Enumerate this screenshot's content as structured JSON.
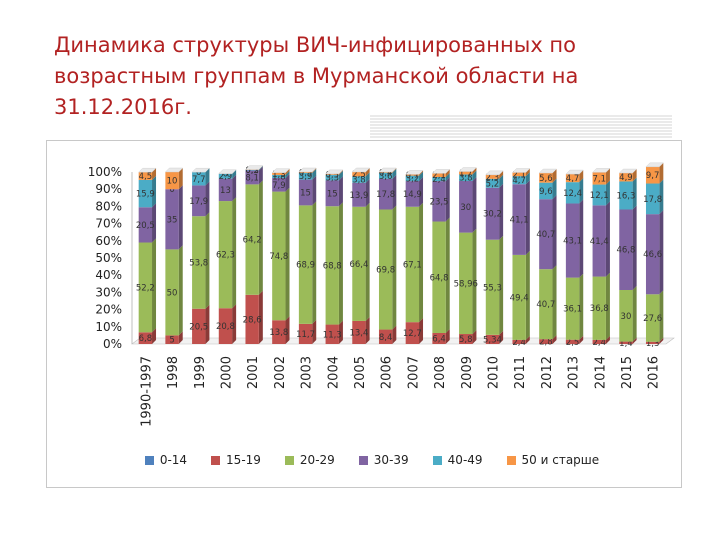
{
  "slide": {
    "title_lines": [
      "Динамика структуры ВИЧ-инфицированных по",
      "возрастным группам в Мурманской области на",
      "31.12.2016г."
    ],
    "title_color": "#b22222"
  },
  "chart_data": {
    "type": "stacked-bar",
    "stacking": "percent",
    "categories": [
      "1990-1997",
      "1998",
      "1999",
      "2000",
      "2001",
      "2002",
      "2003",
      "2004",
      "2005",
      "2006",
      "2007",
      "2008",
      "2009",
      "2010",
      "2011",
      "2012",
      "2013",
      "2014",
      "2015",
      "2016"
    ],
    "y_ticks": [
      "0%",
      "10%",
      "20%",
      "30%",
      "40%",
      "50%",
      "60%",
      "70%",
      "80%",
      "90%",
      "100%"
    ],
    "ylim": [
      0,
      100
    ],
    "grid": false,
    "legend_position": "bottom",
    "series": [
      {
        "name": "0-14",
        "color": "#4f81bd",
        "values": [
          0,
          0,
          0,
          0,
          0,
          0,
          0,
          0,
          0,
          0,
          0,
          0,
          0,
          0,
          0,
          0,
          0,
          0,
          0,
          0
        ],
        "labels": [
          "",
          "",
          "",
          "",
          "",
          "",
          "",
          "",
          "",
          "",
          "",
          "",
          "",
          "",
          "",
          "",
          "",
          "",
          "",
          ""
        ]
      },
      {
        "name": "15-19",
        "color": "#c0504d",
        "values": [
          6.8,
          5,
          20.5,
          20.8,
          28.6,
          13.8,
          11.7,
          11.3,
          13.4,
          8.4,
          12.7,
          6.4,
          5.8,
          5.34,
          2.4,
          2.8,
          2.5,
          2.4,
          1.4,
          1.3
        ],
        "labels": [
          "6,8",
          "5",
          "20,5",
          "20,8",
          "28,6",
          "13,8",
          "11,7",
          "11,3",
          "13,4",
          "8,4",
          "12,7",
          "6,4",
          "5,8",
          "5,34",
          "2,4",
          "2,8",
          "2,5",
          "2,4",
          "1,4",
          "1,3"
        ]
      },
      {
        "name": "20-29",
        "color": "#9bbb59",
        "values": [
          52.2,
          50,
          53.8,
          62.3,
          64.2,
          74.8,
          68.9,
          68.8,
          66.4,
          69.8,
          67.1,
          64.8,
          58.96,
          55.3,
          49.4,
          40.7,
          36.1,
          36.8,
          30,
          27.6
        ],
        "labels": [
          "52,2",
          "50",
          "53,8",
          "62,3",
          "64,2",
          "74,8",
          "68,9",
          "68,8",
          "66,4",
          "69,8",
          "67,1",
          "64,8",
          "58,96",
          "55,3",
          "49,4",
          "40,7",
          "36,1",
          "36,8",
          "30",
          "27,6"
        ]
      },
      {
        "name": "30-39",
        "color": "#8064a2",
        "values": [
          20.5,
          35,
          17.9,
          13,
          8.1,
          7.9,
          15,
          15,
          13.9,
          17.8,
          14.9,
          23.5,
          30,
          30.2,
          41.1,
          40.7,
          43.1,
          41.4,
          46.8,
          46.6
        ],
        "labels": [
          "20,5",
          "35",
          "17,9",
          "13",
          "8,1",
          "7,9",
          "15",
          "15",
          "13,9",
          "17,8",
          "14,9",
          "23,5",
          "30",
          "30,2",
          "41,1",
          "40,7",
          "43,1",
          "41,4",
          "46,8",
          "46,6"
        ]
      },
      {
        "name": "40-49",
        "color": "#4bacc6",
        "values": [
          15.9,
          0,
          7.7,
          2.9,
          0.3,
          1.8,
          3.9,
          3.3,
          3.8,
          3.6,
          3.2,
          2.4,
          3.8,
          5.2,
          4.7,
          9.6,
          12.4,
          12.1,
          16.3,
          17.8
        ],
        "labels": [
          "15,9",
          "0",
          "7,7",
          "2,9",
          "0,3",
          "1,8",
          "3,9",
          "3,3",
          "3,8",
          "3,6",
          "3,2",
          "2,4",
          "3,8",
          "5,2",
          "4,7",
          "9,6",
          "12,4",
          "12,1",
          "16,3",
          "17,8"
        ]
      },
      {
        "name": "50 и старше",
        "color": "#f79646",
        "values": [
          4.5,
          10,
          0,
          0,
          0.2,
          1.3,
          0.5,
          0.5,
          2.5,
          0.4,
          0.7,
          2.1,
          1.7,
          2.3,
          2.1,
          5.6,
          4.7,
          7.1,
          4.9,
          9.7
        ],
        "labels": [
          "4,5",
          "10",
          "0",
          "0",
          "0,2",
          "1,3",
          "0,5",
          "0,5",
          "2,5",
          "0,4",
          "0,7",
          "2,1",
          "1,7",
          "2,3",
          "2,1",
          "5,6",
          "4,7",
          "7,1",
          "4,9",
          "9,7"
        ]
      }
    ]
  }
}
